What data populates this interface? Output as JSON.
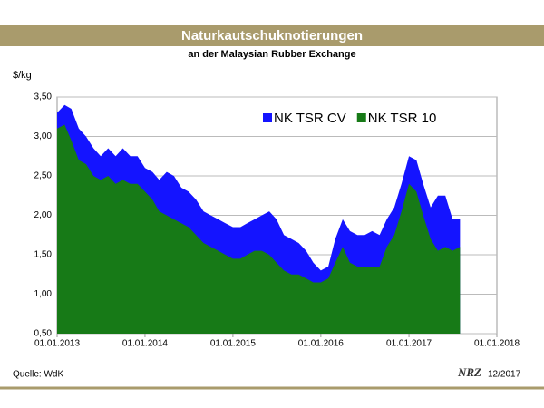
{
  "chart_data": {
    "type": "area",
    "title": "Naturkautschuknotierungen",
    "subtitle": "an der Malaysian Rubber Exchange",
    "y_label": "$/kg",
    "source": "Quelle: WdK",
    "logo": "NRZ",
    "date": "12/2017",
    "x": [
      "2013-01-01",
      "2013-02-01",
      "2013-03-01",
      "2013-04-01",
      "2013-05-01",
      "2013-06-01",
      "2013-07-01",
      "2013-08-01",
      "2013-09-01",
      "2013-10-01",
      "2013-11-01",
      "2013-12-01",
      "2014-01-01",
      "2014-02-01",
      "2014-03-01",
      "2014-04-01",
      "2014-05-01",
      "2014-06-01",
      "2014-07-01",
      "2014-08-01",
      "2014-09-01",
      "2014-10-01",
      "2014-11-01",
      "2014-12-01",
      "2015-01-01",
      "2015-02-01",
      "2015-03-01",
      "2015-04-01",
      "2015-05-01",
      "2015-06-01",
      "2015-07-01",
      "2015-08-01",
      "2015-09-01",
      "2015-10-01",
      "2015-11-01",
      "2015-12-01",
      "2016-01-01",
      "2016-02-01",
      "2016-03-01",
      "2016-04-01",
      "2016-05-01",
      "2016-06-01",
      "2016-07-01",
      "2016-08-01",
      "2016-09-01",
      "2016-10-01",
      "2016-11-01",
      "2016-12-01",
      "2017-01-01",
      "2017-02-01",
      "2017-03-01",
      "2017-04-01",
      "2017-05-01",
      "2017-06-01",
      "2017-07-01",
      "2017-08-01"
    ],
    "series": [
      {
        "name": "NK TSR CV",
        "color": "#1414ff",
        "values": [
          3.3,
          3.4,
          3.35,
          3.1,
          3.0,
          2.85,
          2.75,
          2.85,
          2.75,
          2.85,
          2.75,
          2.75,
          2.6,
          2.55,
          2.45,
          2.55,
          2.5,
          2.35,
          2.3,
          2.2,
          2.05,
          2.0,
          1.95,
          1.9,
          1.85,
          1.85,
          1.9,
          1.95,
          2.0,
          2.05,
          1.95,
          1.75,
          1.7,
          1.65,
          1.55,
          1.4,
          1.3,
          1.35,
          1.7,
          1.95,
          1.8,
          1.75,
          1.75,
          1.8,
          1.75,
          1.95,
          2.1,
          2.4,
          2.75,
          2.7,
          2.4,
          2.1,
          2.25,
          2.25,
          1.95,
          1.95
        ]
      },
      {
        "name": "NK TSR 10",
        "color": "#177a17",
        "values": [
          3.1,
          3.15,
          2.95,
          2.7,
          2.65,
          2.5,
          2.45,
          2.5,
          2.4,
          2.45,
          2.4,
          2.4,
          2.3,
          2.2,
          2.05,
          2.0,
          1.95,
          1.9,
          1.85,
          1.75,
          1.65,
          1.6,
          1.55,
          1.5,
          1.45,
          1.45,
          1.5,
          1.55,
          1.55,
          1.5,
          1.4,
          1.3,
          1.25,
          1.25,
          1.2,
          1.15,
          1.15,
          1.2,
          1.4,
          1.6,
          1.4,
          1.35,
          1.35,
          1.35,
          1.35,
          1.6,
          1.75,
          2.05,
          2.4,
          2.3,
          2.0,
          1.7,
          1.55,
          1.6,
          1.55,
          1.6
        ]
      }
    ],
    "xlim": [
      "2013-01-01",
      "2018-01-01"
    ],
    "xticks": [
      {
        "value": "2013-01-01",
        "label": "01.01.2013"
      },
      {
        "value": "2014-01-01",
        "label": "01.01.2014"
      },
      {
        "value": "2015-01-01",
        "label": "01.01.2015"
      },
      {
        "value": "2016-01-01",
        "label": "01.01.2016"
      },
      {
        "value": "2017-01-01",
        "label": "01.01.2017"
      },
      {
        "value": "2018-01-01",
        "label": "01.01.2018"
      }
    ],
    "ylim": [
      0.5,
      3.5
    ],
    "yticks": [
      {
        "value": 0.5,
        "label": "0,50"
      },
      {
        "value": 1.0,
        "label": "1,00"
      },
      {
        "value": 1.5,
        "label": "1,50"
      },
      {
        "value": 2.0,
        "label": "2,00"
      },
      {
        "value": 2.5,
        "label": "2,50"
      },
      {
        "value": 3.0,
        "label": "3,00"
      },
      {
        "value": 3.5,
        "label": "3,50"
      }
    ],
    "grid": true,
    "legend": "top-right"
  }
}
